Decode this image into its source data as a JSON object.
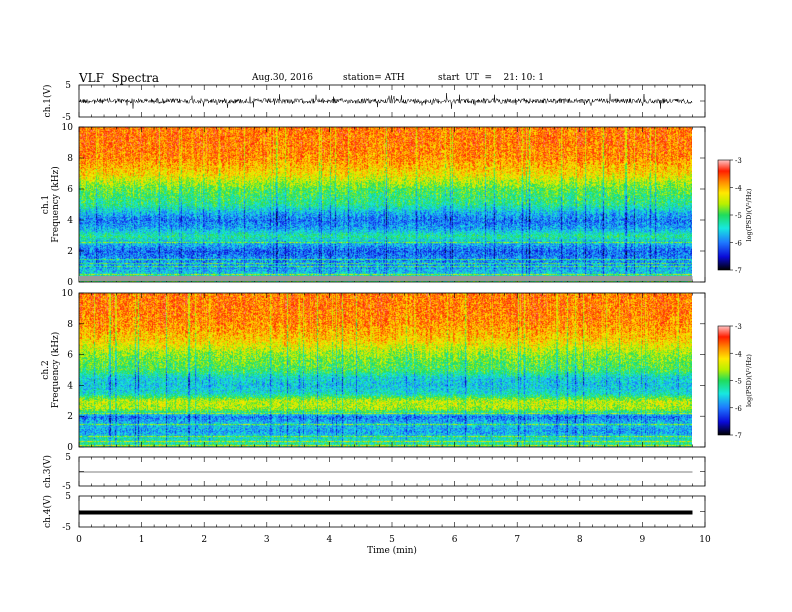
{
  "header": {
    "title": "VLF  Spectra",
    "date": "Aug.30, 2016",
    "station": "station= ATH",
    "start": "start  UT  =    21: 10: 1"
  },
  "colors": {
    "scale": [
      "#000000",
      "#0a0ad8",
      "#1e78ff",
      "#17e8e0",
      "#20dc5c",
      "#b8f000",
      "#ffe800",
      "#ff8c00",
      "#ff1e00",
      "#ffc4c4"
    ]
  },
  "chart_data": [
    {
      "type": "line",
      "panel": "ch1-waveform",
      "ylabel": "ch.1(V)",
      "yticks": [
        "5",
        "-5"
      ],
      "ylim": [
        -5,
        5
      ],
      "xlim": [
        0,
        10
      ],
      "note_visible": "dense noisy waveform centered near 0 V, data spans 0 to ~9.8 min"
    },
    {
      "type": "heatmap",
      "panel": "ch1-spectrogram",
      "ylabel": "ch.1\nFrequency  (kHz)",
      "ylabel_lines": [
        "ch.1",
        "Frequency  (kHz)"
      ],
      "yticks": [
        "10",
        "8",
        "6",
        "4",
        "2",
        "0"
      ],
      "ylim": [
        0,
        10
      ],
      "xlim": [
        0,
        9.8
      ],
      "colorbar": {
        "label": "log(PSD)(V²/Hz)",
        "ticks": [
          "-3",
          "-4",
          "-5",
          "-6",
          "-7"
        ],
        "range": [
          -7,
          -3
        ]
      },
      "band_profile_kHz_vs_logPSD": [
        [
          0.2,
          -5.0
        ],
        [
          0.6,
          -5.6
        ],
        [
          1.0,
          -5.8
        ],
        [
          1.5,
          -5.9
        ],
        [
          2.0,
          -6.1
        ],
        [
          2.5,
          -5.7
        ],
        [
          3.0,
          -5.2
        ],
        [
          3.5,
          -5.8
        ],
        [
          4.0,
          -6.0
        ],
        [
          4.5,
          -5.7
        ],
        [
          5.0,
          -5.2
        ],
        [
          6.0,
          -4.9
        ],
        [
          7.0,
          -4.2
        ],
        [
          8.0,
          -3.8
        ],
        [
          9.0,
          -3.7
        ],
        [
          10.0,
          -3.7
        ]
      ]
    },
    {
      "type": "heatmap",
      "panel": "ch2-spectrogram",
      "ylabel_lines": [
        "ch.2",
        "Frequency  (kHz)"
      ],
      "yticks": [
        "10",
        "8",
        "6",
        "4",
        "2",
        "0"
      ],
      "ylim": [
        0,
        10
      ],
      "xlim": [
        0,
        9.8
      ],
      "colorbar": {
        "label": "log(PSD)(V²/Hz)",
        "ticks": [
          "-3",
          "-4",
          "-5",
          "-6",
          "-7"
        ],
        "range": [
          -7,
          -3
        ]
      },
      "band_profile_kHz_vs_logPSD": [
        [
          0.2,
          -5.2
        ],
        [
          0.6,
          -5.4
        ],
        [
          1.0,
          -5.8
        ],
        [
          1.5,
          -5.6
        ],
        [
          2.0,
          -6.0
        ],
        [
          2.5,
          -4.6
        ],
        [
          3.0,
          -4.5
        ],
        [
          3.5,
          -5.4
        ],
        [
          4.0,
          -5.6
        ],
        [
          4.5,
          -5.5
        ],
        [
          5.0,
          -5.0
        ],
        [
          6.0,
          -4.7
        ],
        [
          7.0,
          -4.1
        ],
        [
          8.0,
          -3.8
        ],
        [
          9.0,
          -3.7
        ],
        [
          10.0,
          -3.7
        ]
      ]
    },
    {
      "type": "line",
      "panel": "ch3-waveform",
      "ylabel": "ch.3(V)",
      "yticks": [
        "5",
        "-5"
      ],
      "ylim": [
        -5,
        5
      ],
      "xlim": [
        0,
        10
      ]
    },
    {
      "type": "line",
      "panel": "ch4-waveform",
      "ylabel": "ch.4(V)",
      "yticks": [
        "5",
        "-5"
      ],
      "ylim": [
        -5,
        5
      ],
      "xlim": [
        0,
        10
      ]
    }
  ],
  "xaxis": {
    "label": "Time  (min)",
    "ticks": [
      "0",
      "1",
      "2",
      "3",
      "4",
      "5",
      "6",
      "7",
      "8",
      "9",
      "10"
    ]
  }
}
